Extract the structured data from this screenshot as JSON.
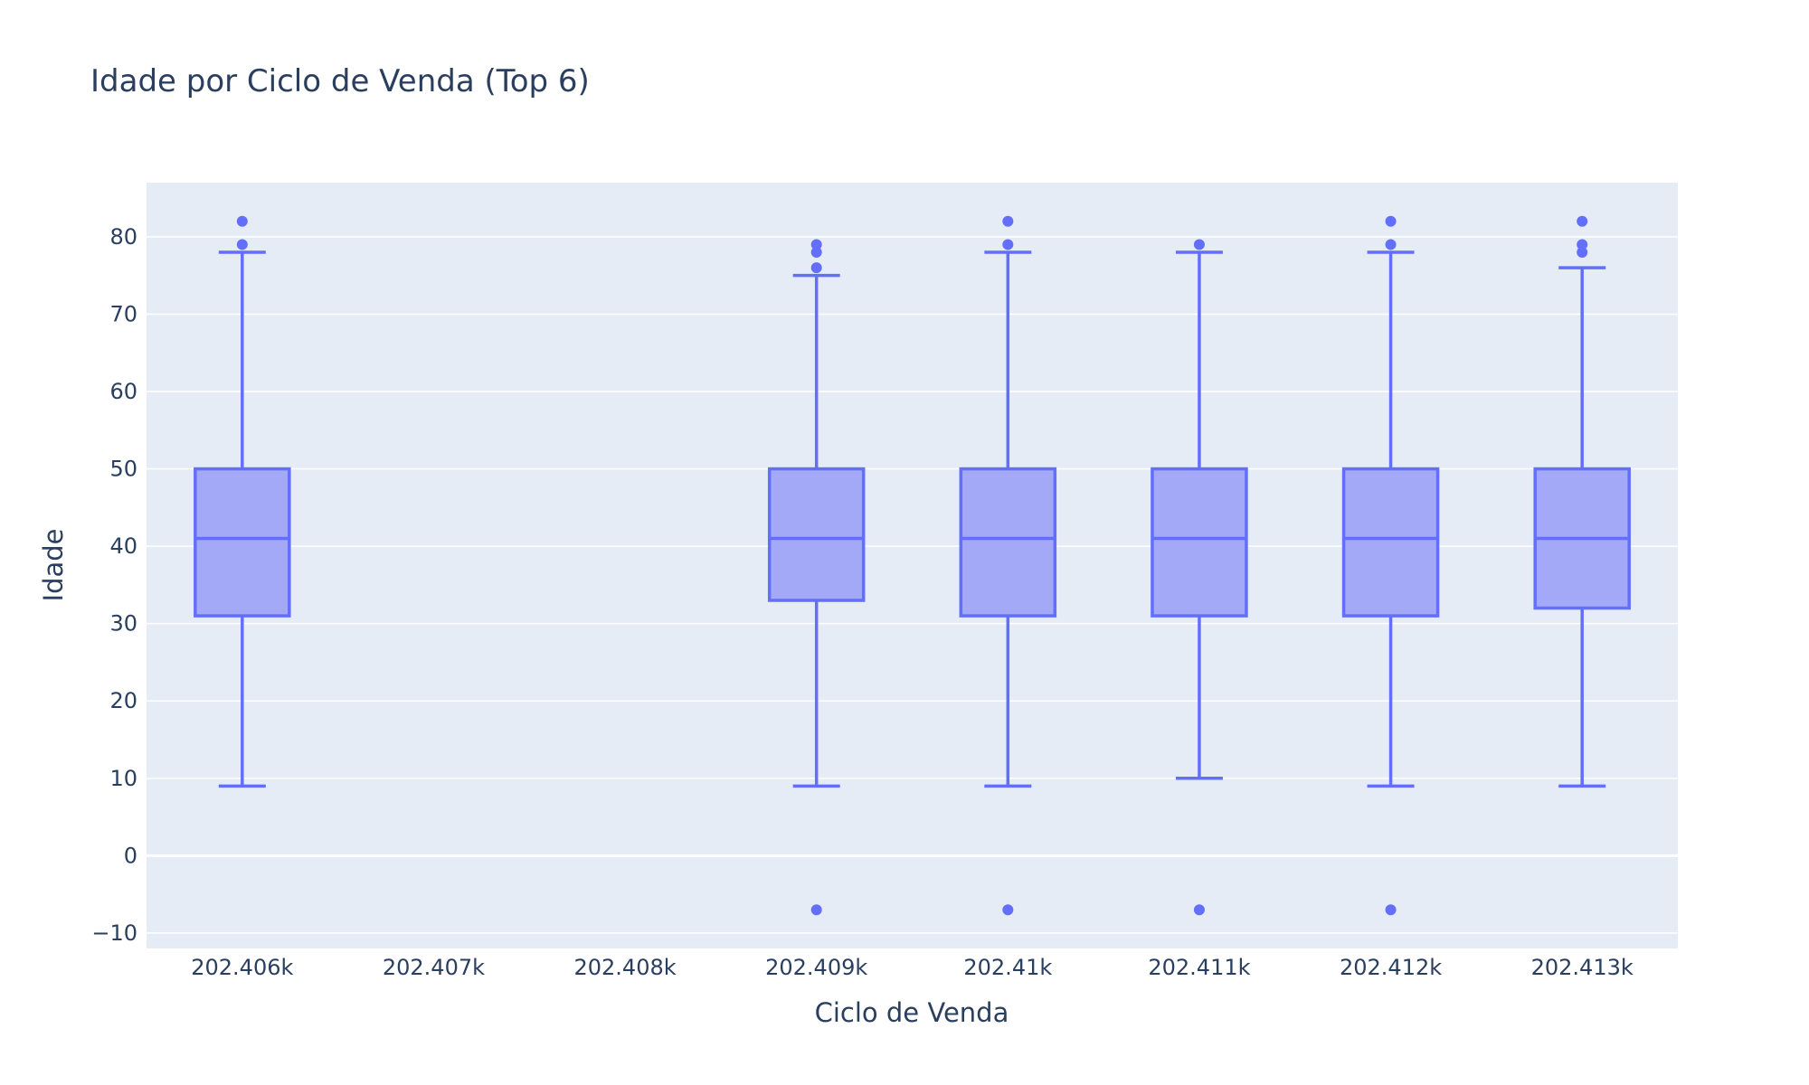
{
  "chart_data": {
    "type": "box",
    "title": "Idade por Ciclo de Venda (Top 6)",
    "xlabel": "Ciclo de Venda",
    "ylabel": "Idade",
    "x_range": [
      202405.5,
      202413.5
    ],
    "y_range": [
      -12,
      87
    ],
    "x_ticks": [
      202406,
      202407,
      202408,
      202409,
      202410,
      202411,
      202412,
      202413
    ],
    "x_tick_labels": [
      "202.406k",
      "202.407k",
      "202.408k",
      "202.409k",
      "202.41k",
      "202.411k",
      "202.412k",
      "202.413k"
    ],
    "y_ticks": [
      -10,
      0,
      10,
      20,
      30,
      40,
      50,
      60,
      70,
      80
    ],
    "y_tick_labels": [
      "−10",
      "0",
      "10",
      "20",
      "30",
      "40",
      "50",
      "60",
      "70",
      "80"
    ],
    "grid": true,
    "colors": {
      "box_line": "#636efa",
      "box_fill": "#a3a9f7",
      "plot_bg": "#e5ecf6",
      "grid": "#ffffff"
    },
    "boxes": [
      {
        "x": 202406,
        "lower_whisker": 9,
        "q1": 31,
        "median": 41,
        "q3": 50,
        "upper_whisker": 78,
        "outliers": [
          79,
          82
        ]
      },
      {
        "x": 202409,
        "lower_whisker": 9,
        "q1": 33,
        "median": 41,
        "q3": 50,
        "upper_whisker": 75,
        "outliers": [
          -7,
          76,
          78,
          79
        ]
      },
      {
        "x": 202410,
        "lower_whisker": 9,
        "q1": 31,
        "median": 41,
        "q3": 50,
        "upper_whisker": 78,
        "outliers": [
          -7,
          79,
          82
        ]
      },
      {
        "x": 202411,
        "lower_whisker": 10,
        "q1": 31,
        "median": 41,
        "q3": 50,
        "upper_whisker": 78,
        "outliers": [
          -7,
          79
        ]
      },
      {
        "x": 202412,
        "lower_whisker": 9,
        "q1": 31,
        "median": 41,
        "q3": 50,
        "upper_whisker": 78,
        "outliers": [
          -7,
          79,
          82
        ]
      },
      {
        "x": 202413,
        "lower_whisker": 9,
        "q1": 32,
        "median": 41,
        "q3": 50,
        "upper_whisker": 76,
        "outliers": [
          78,
          79,
          82
        ]
      }
    ]
  }
}
